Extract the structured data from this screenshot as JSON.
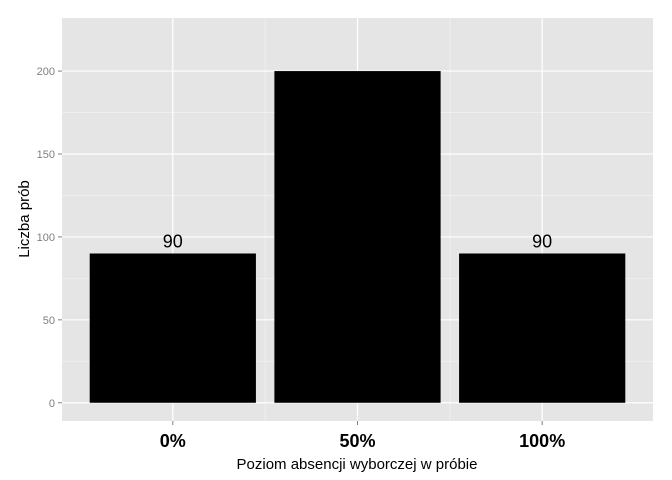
{
  "chart_data": {
    "type": "bar",
    "categories": [
      "0%",
      "50%",
      "100%"
    ],
    "values": [
      90,
      200,
      90
    ],
    "data_labels": [
      "90",
      "",
      "90"
    ],
    "xlabel": "Poziom absencji wyborczej w próbie",
    "ylabel": "Liczba prób",
    "ylim": [
      -11,
      232
    ],
    "yticks": [
      0,
      50,
      100,
      150,
      200
    ],
    "grid": true,
    "colors": {
      "panel": "#e5e5e5",
      "grid_major": "#ffffff",
      "grid_minor": "#f2f2f2",
      "bar": "#000000"
    }
  }
}
